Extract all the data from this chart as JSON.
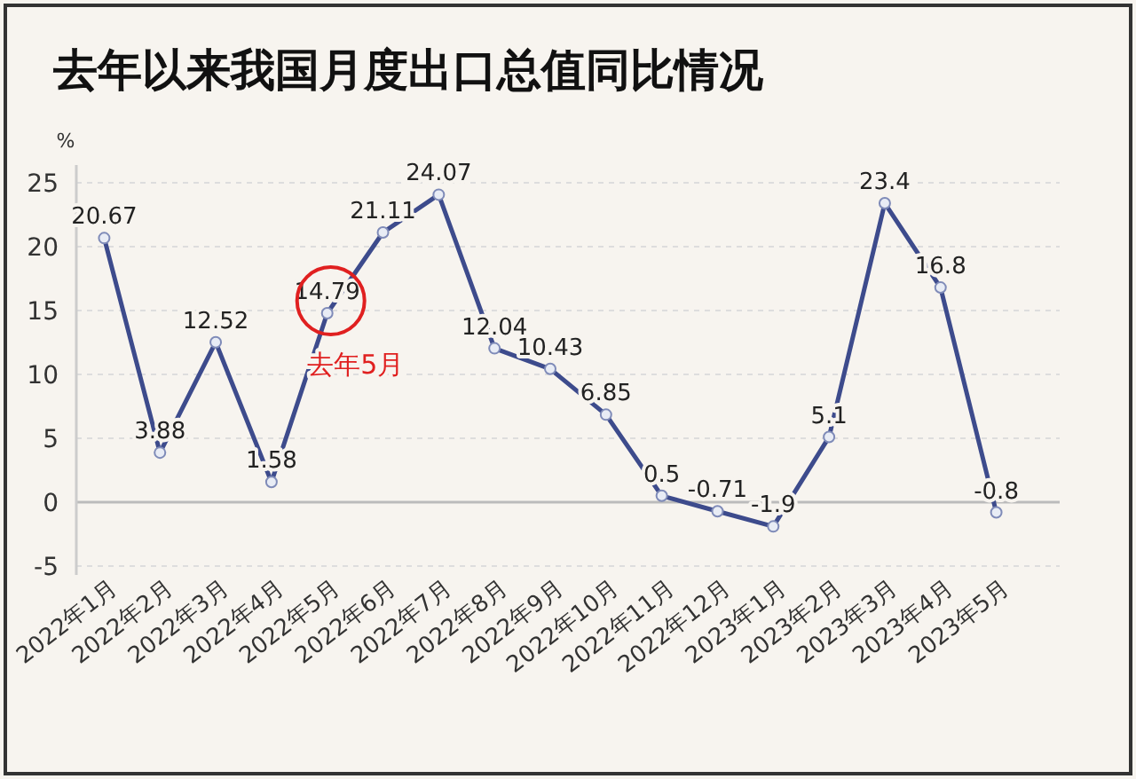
{
  "chart_data": {
    "type": "line",
    "title": "去年以来我国月度出口总值同比情况",
    "ylabel": "%",
    "categories": [
      "2022年1月",
      "2022年2月",
      "2022年3月",
      "2022年4月",
      "2022年5月",
      "2022年6月",
      "2022年7月",
      "2022年8月",
      "2022年9月",
      "2022年10月",
      "2022年11月",
      "2022年12月",
      "2023年1月",
      "2023年2月",
      "2023年3月",
      "2023年4月",
      "2023年5月"
    ],
    "series": [
      {
        "color": "#3d4b8c",
        "values": [
          20.67,
          3.88,
          12.52,
          1.58,
          14.79,
          21.11,
          24.07,
          12.04,
          10.43,
          6.85,
          0.5,
          -0.71,
          -1.9,
          5.1,
          23.4,
          16.8,
          -0.8
        ]
      }
    ],
    "ylim": [
      -5,
      25
    ],
    "yticks": [
      -5,
      0,
      5,
      10,
      15,
      20,
      25
    ],
    "grid": "y",
    "marker": "circle",
    "data_labels": true,
    "annotations": [
      {
        "text": "去年5月",
        "x": "2022年5月",
        "y": 14.79
      }
    ]
  }
}
